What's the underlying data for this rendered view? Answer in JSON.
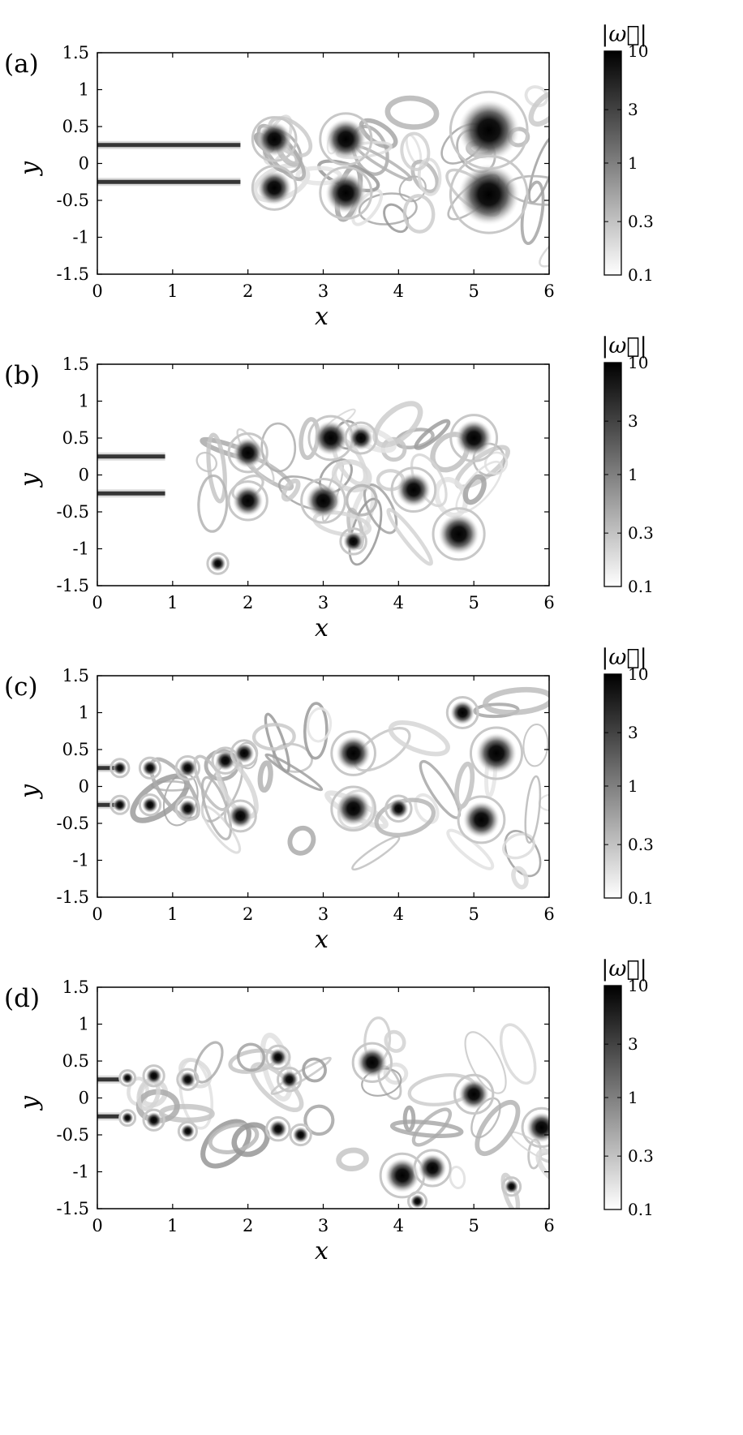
{
  "chart_data": [
    {
      "type": "heatmap",
      "panel_label": "(a)",
      "xlabel": "x",
      "ylabel": "y",
      "xlim": [
        0,
        6
      ],
      "ylim": [
        -1.5,
        1.5
      ],
      "x_ticks": [
        "0",
        "1",
        "2",
        "3",
        "4",
        "5",
        "6"
      ],
      "y_ticks": [
        "1.5",
        "1",
        "0.5",
        "0",
        "-0.5",
        "-1",
        "-1.5"
      ],
      "colorbar": {
        "title": "|ω⃗|",
        "scale": "log",
        "range": [
          0.1,
          10
        ],
        "ticks": [
          "10",
          "3",
          "1",
          "0.3",
          "0.1"
        ],
        "colors": {
          "low": "#ffffff",
          "high": "#000000"
        }
      },
      "shear_layers": {
        "y": [
          0.25,
          -0.25
        ],
        "rollup_x": 1.8
      },
      "vortices": [
        {
          "x": 2.35,
          "y": 0.33,
          "r": 0.17
        },
        {
          "x": 2.35,
          "y": -0.33,
          "r": 0.17
        },
        {
          "x": 3.3,
          "y": 0.33,
          "r": 0.2
        },
        {
          "x": 3.3,
          "y": -0.4,
          "r": 0.2
        },
        {
          "x": 5.2,
          "y": 0.45,
          "r": 0.3
        },
        {
          "x": 5.2,
          "y": -0.42,
          "r": 0.3
        }
      ]
    },
    {
      "type": "heatmap",
      "panel_label": "(b)",
      "xlabel": "x",
      "ylabel": "y",
      "xlim": [
        0,
        6
      ],
      "ylim": [
        -1.5,
        1.5
      ],
      "x_ticks": [
        "0",
        "1",
        "2",
        "3",
        "4",
        "5",
        "6"
      ],
      "y_ticks": [
        "1.5",
        "1",
        "0.5",
        "0",
        "-0.5",
        "-1",
        "-1.5"
      ],
      "colorbar": {
        "title": "|ω⃗|",
        "scale": "log",
        "range": [
          0.1,
          10
        ],
        "ticks": [
          "10",
          "3",
          "1",
          "0.3",
          "0.1"
        ],
        "colors": {
          "low": "#ffffff",
          "high": "#000000"
        }
      },
      "shear_layers": {
        "y": [
          0.25,
          -0.25
        ],
        "rollup_x": 0.8
      },
      "vortices": [
        {
          "x": 2.0,
          "y": 0.3,
          "r": 0.15
        },
        {
          "x": 2.0,
          "y": -0.35,
          "r": 0.15
        },
        {
          "x": 3.1,
          "y": 0.5,
          "r": 0.17
        },
        {
          "x": 3.0,
          "y": -0.35,
          "r": 0.17
        },
        {
          "x": 3.5,
          "y": 0.5,
          "r": 0.12
        },
        {
          "x": 4.2,
          "y": -0.2,
          "r": 0.17
        },
        {
          "x": 4.8,
          "y": -0.8,
          "r": 0.2
        },
        {
          "x": 5.0,
          "y": 0.5,
          "r": 0.18
        },
        {
          "x": 3.4,
          "y": -0.9,
          "r": 0.1
        },
        {
          "x": 1.6,
          "y": -1.2,
          "r": 0.08
        }
      ]
    },
    {
      "type": "heatmap",
      "panel_label": "(c)",
      "xlabel": "x",
      "ylabel": "y",
      "xlim": [
        0,
        6
      ],
      "ylim": [
        -1.5,
        1.5
      ],
      "x_ticks": [
        "0",
        "1",
        "2",
        "3",
        "4",
        "5",
        "6"
      ],
      "y_ticks": [
        "1.5",
        "1",
        "0.5",
        "0",
        "-0.5",
        "-1",
        "-1.5"
      ],
      "colorbar": {
        "title": "|ω⃗|",
        "scale": "log",
        "range": [
          0.1,
          10
        ],
        "ticks": [
          "10",
          "3",
          "1",
          "0.3",
          "0.1"
        ],
        "colors": {
          "low": "#ffffff",
          "high": "#000000"
        }
      },
      "shear_layers": {
        "y": [
          0.25,
          -0.25
        ],
        "rollup_x": 0.2
      },
      "vortices": [
        {
          "x": 0.3,
          "y": 0.25,
          "r": 0.07
        },
        {
          "x": 0.3,
          "y": -0.25,
          "r": 0.07
        },
        {
          "x": 0.7,
          "y": 0.25,
          "r": 0.08
        },
        {
          "x": 0.7,
          "y": -0.25,
          "r": 0.08
        },
        {
          "x": 1.2,
          "y": 0.25,
          "r": 0.09
        },
        {
          "x": 1.2,
          "y": -0.3,
          "r": 0.09
        },
        {
          "x": 1.7,
          "y": 0.35,
          "r": 0.1
        },
        {
          "x": 1.95,
          "y": 0.45,
          "r": 0.1
        },
        {
          "x": 1.9,
          "y": -0.4,
          "r": 0.12
        },
        {
          "x": 3.4,
          "y": 0.45,
          "r": 0.17
        },
        {
          "x": 3.4,
          "y": -0.3,
          "r": 0.17
        },
        {
          "x": 4.0,
          "y": -0.3,
          "r": 0.1
        },
        {
          "x": 5.1,
          "y": -0.45,
          "r": 0.18
        },
        {
          "x": 5.3,
          "y": 0.45,
          "r": 0.2
        },
        {
          "x": 4.85,
          "y": 1.0,
          "r": 0.12
        }
      ]
    },
    {
      "type": "heatmap",
      "panel_label": "(d)",
      "xlabel": "x",
      "ylabel": "y",
      "xlim": [
        0,
        6
      ],
      "ylim": [
        -1.5,
        1.5
      ],
      "x_ticks": [
        "0",
        "1",
        "2",
        "3",
        "4",
        "5",
        "6"
      ],
      "y_ticks": [
        "1.5",
        "1",
        "0.5",
        "0",
        "-0.5",
        "-1",
        "-1.5"
      ],
      "colorbar": {
        "title": "|ω⃗|",
        "scale": "log",
        "range": [
          0.1,
          10
        ],
        "ticks": [
          "10",
          "3",
          "1",
          "0.3",
          "0.1"
        ],
        "colors": {
          "low": "#ffffff",
          "high": "#000000"
        }
      },
      "shear_layers": {
        "y": [
          0.25,
          -0.25
        ],
        "rollup_x": 0.2
      },
      "vortices": [
        {
          "x": 0.4,
          "y": 0.27,
          "r": 0.06
        },
        {
          "x": 0.4,
          "y": -0.27,
          "r": 0.06
        },
        {
          "x": 0.75,
          "y": 0.3,
          "r": 0.08
        },
        {
          "x": 0.75,
          "y": -0.3,
          "r": 0.08
        },
        {
          "x": 1.2,
          "y": 0.25,
          "r": 0.08
        },
        {
          "x": 1.2,
          "y": -0.45,
          "r": 0.07
        },
        {
          "x": 2.4,
          "y": 0.55,
          "r": 0.09
        },
        {
          "x": 2.55,
          "y": 0.25,
          "r": 0.09
        },
        {
          "x": 2.4,
          "y": -0.42,
          "r": 0.09
        },
        {
          "x": 2.7,
          "y": -0.5,
          "r": 0.08
        },
        {
          "x": 3.65,
          "y": 0.48,
          "r": 0.15
        },
        {
          "x": 4.05,
          "y": -1.05,
          "r": 0.17
        },
        {
          "x": 4.45,
          "y": -0.95,
          "r": 0.14
        },
        {
          "x": 4.25,
          "y": -1.4,
          "r": 0.07
        },
        {
          "x": 5.0,
          "y": 0.05,
          "r": 0.15
        },
        {
          "x": 5.9,
          "y": -0.4,
          "r": 0.15
        },
        {
          "x": 5.5,
          "y": -1.2,
          "r": 0.07
        }
      ]
    }
  ]
}
